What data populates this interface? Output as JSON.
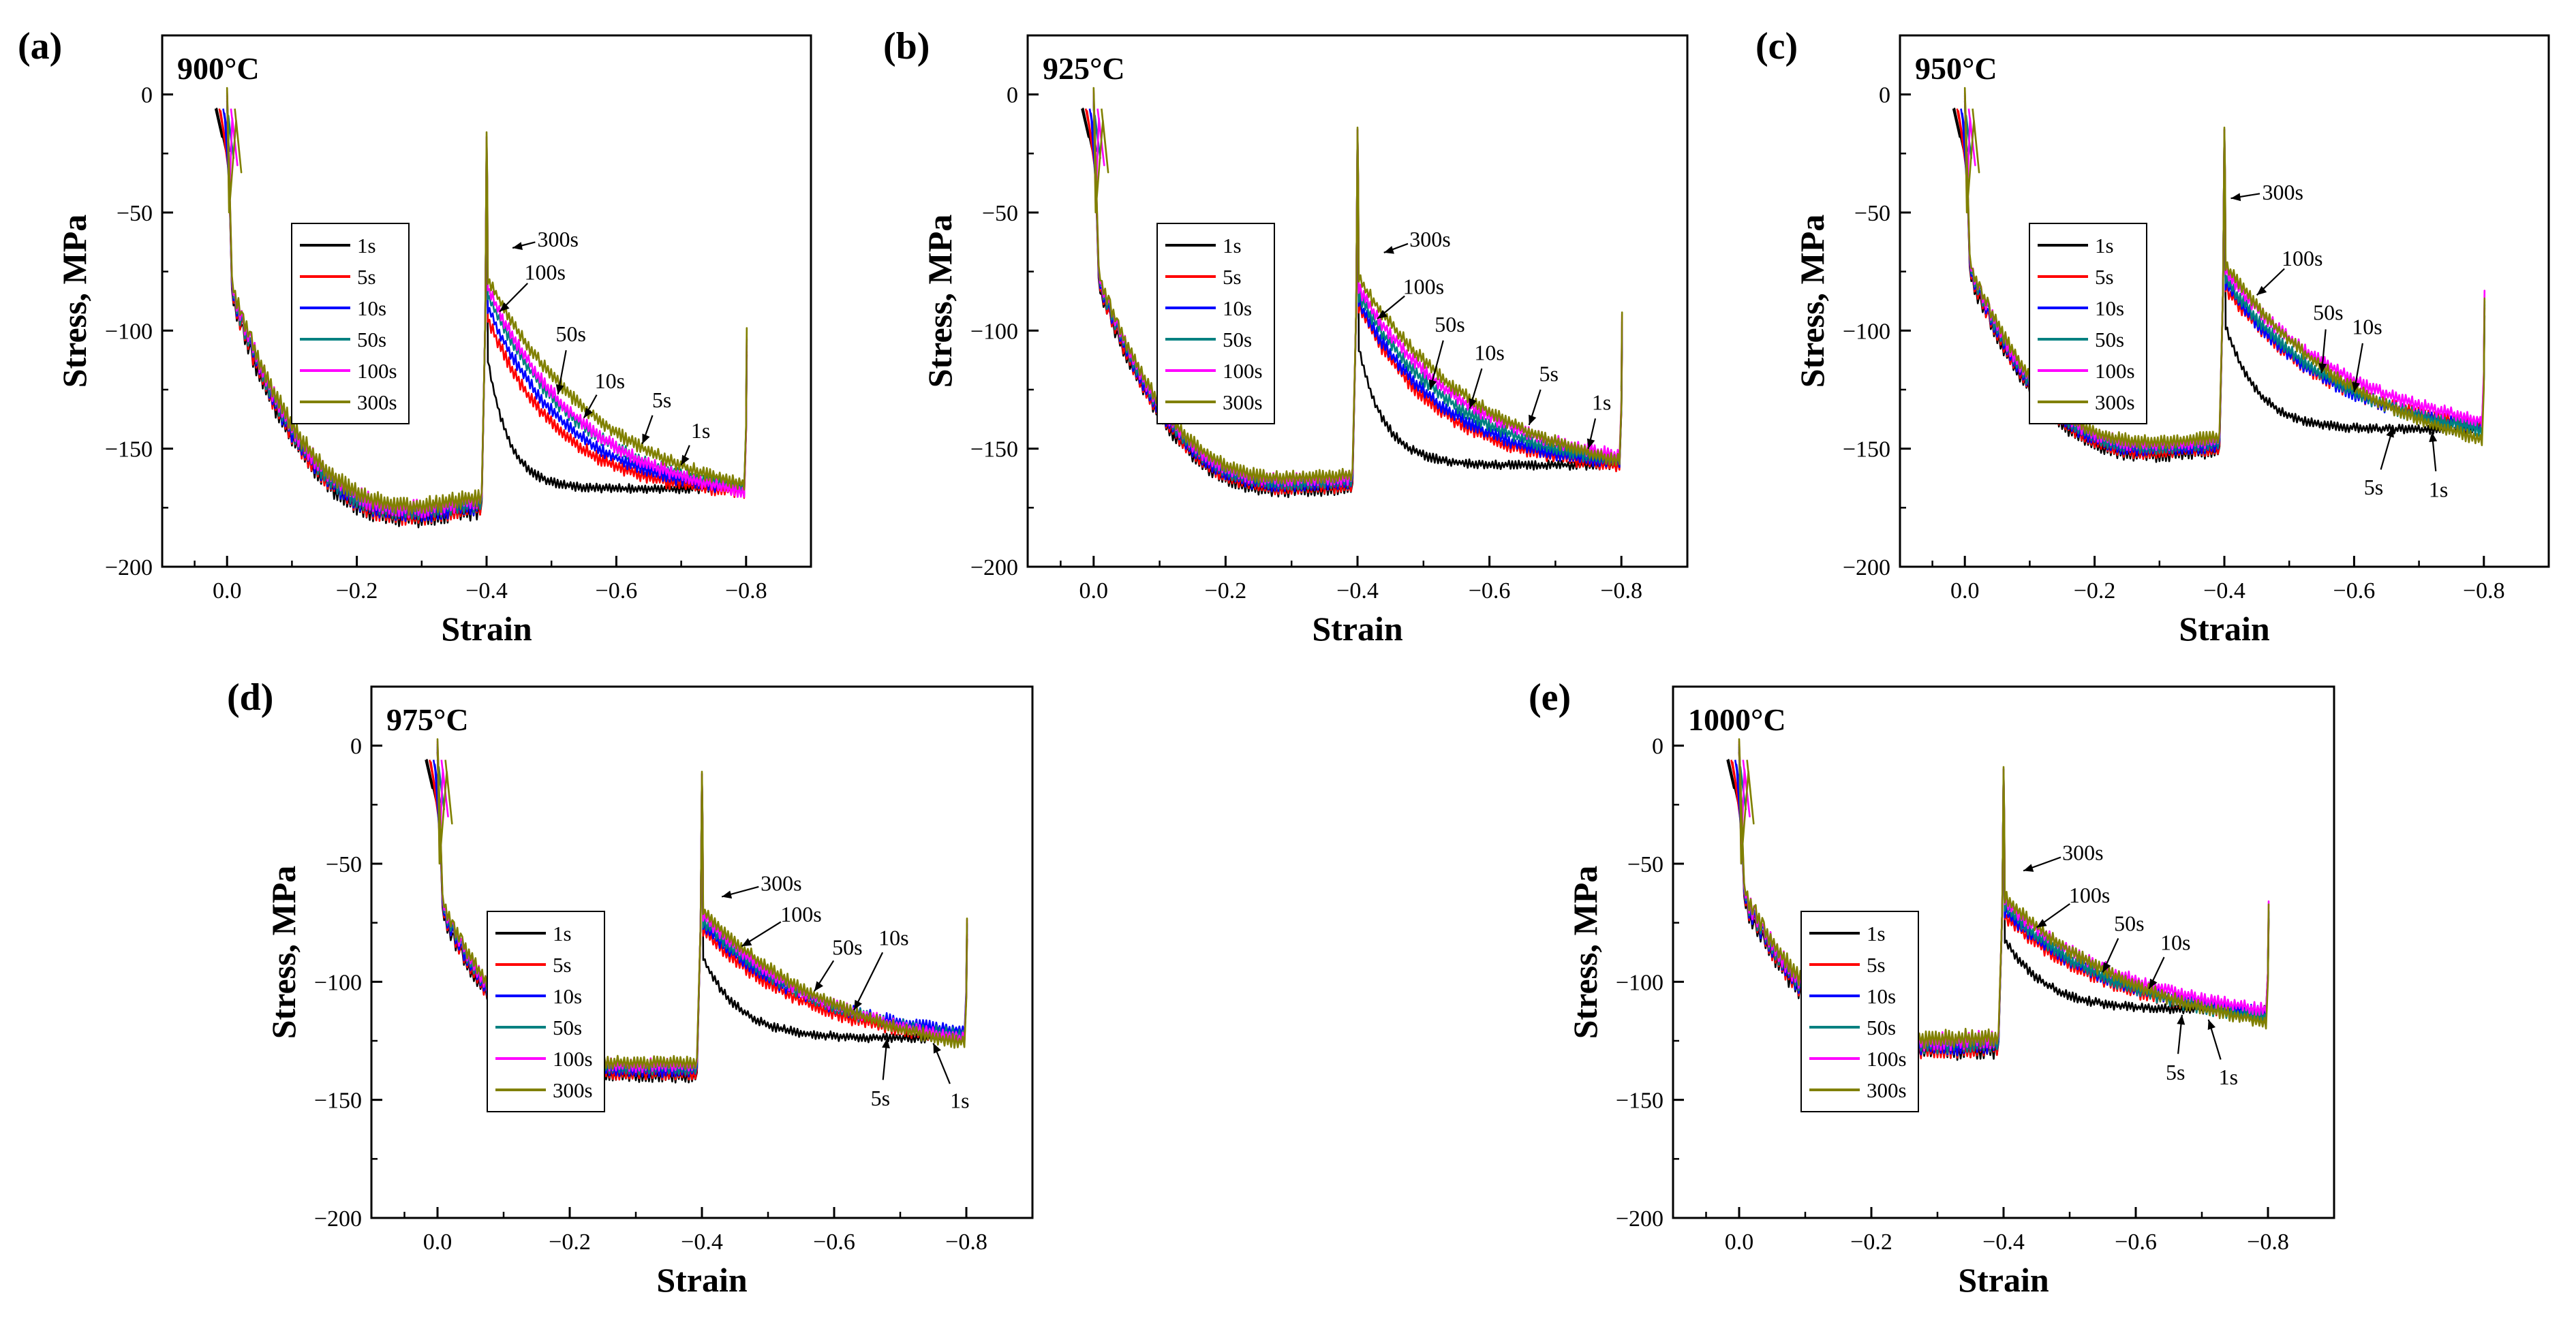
{
  "figure": {
    "xlabel": "Strain",
    "ylabel": "Stress, MPa"
  },
  "chart_data": [
    {
      "type": "line",
      "panel": "(a)",
      "temperature": "900°C",
      "xlim": [
        0.1,
        -0.9
      ],
      "ylim": [
        25,
        -200
      ],
      "xticks": [
        0,
        -0.2,
        -0.4,
        -0.6,
        -0.8
      ],
      "xtick_labels": [
        "0.0",
        "−0.2",
        "−0.4",
        "−0.6",
        "−0.8"
      ],
      "yticks": [
        0,
        -50,
        -100,
        -150,
        -200
      ],
      "ytick_labels": [
        "0",
        "−50",
        "−100",
        "−150",
        "−200"
      ],
      "legend": {
        "position": "center-left",
        "entries": [
          "1s",
          "5s",
          "10s",
          "50s",
          "100s",
          "300s"
        ]
      },
      "first_pass": {
        "yield_stress": -85,
        "peak_stress": -177,
        "end_stress": -173,
        "noise": 4
      },
      "series": [
        {
          "name": "1s",
          "color": "#000000",
          "unload_min": -20,
          "reload_start": -112,
          "end_stress": -167,
          "rate": 30,
          "noise": 2
        },
        {
          "name": "5s",
          "color": "#ff0000",
          "unload_min": -20,
          "reload_start": -95,
          "end_stress": -168,
          "rate": 9,
          "noise": 3
        },
        {
          "name": "10s",
          "color": "#0000ff",
          "unload_min": -20,
          "reload_start": -90,
          "end_stress": -167,
          "rate": 8,
          "noise": 3
        },
        {
          "name": "50s",
          "color": "#008080",
          "unload_min": -18,
          "reload_start": -85,
          "end_stress": -166,
          "rate": 7,
          "noise": 3
        },
        {
          "name": "100s",
          "color": "#ff00ff",
          "unload_min": -18,
          "reload_start": -82,
          "end_stress": -168,
          "rate": 6.5,
          "noise": 3
        },
        {
          "name": "300s",
          "color": "#808000",
          "unload_min": -16,
          "reload_start": -78,
          "end_stress": -165,
          "rate": 5.5,
          "noise": 3
        }
      ],
      "annotations": [
        {
          "text": "1s",
          "x": -0.73,
          "y": -142,
          "tip_x": -0.7,
          "tip_y": -157
        },
        {
          "text": "5s",
          "x": -0.67,
          "y": -129,
          "tip_x": -0.64,
          "tip_y": -148
        },
        {
          "text": "10s",
          "x": -0.59,
          "y": -121,
          "tip_x": -0.55,
          "tip_y": -137
        },
        {
          "text": "50s",
          "x": -0.53,
          "y": -101,
          "tip_x": -0.51,
          "tip_y": -127
        },
        {
          "text": "100s",
          "x": -0.49,
          "y": -75,
          "tip_x": -0.42,
          "tip_y": -92
        },
        {
          "text": "300s",
          "x": -0.51,
          "y": -61,
          "tip_x": -0.44,
          "tip_y": -65
        }
      ]
    },
    {
      "type": "line",
      "panel": "(b)",
      "temperature": "925°C",
      "xlim": [
        0.1,
        -0.9
      ],
      "ylim": [
        25,
        -200
      ],
      "xticks": [
        0,
        -0.2,
        -0.4,
        -0.6,
        -0.8
      ],
      "xtick_labels": [
        "0.0",
        "−0.2",
        "−0.4",
        "−0.6",
        "−0.8"
      ],
      "yticks": [
        0,
        -50,
        -100,
        -150,
        -200
      ],
      "ytick_labels": [
        "0",
        "−50",
        "−100",
        "−150",
        "−200"
      ],
      "legend": {
        "position": "center-left",
        "entries": [
          "1s",
          "5s",
          "10s",
          "50s",
          "100s",
          "300s"
        ]
      },
      "first_pass": {
        "yield_stress": -80,
        "peak_stress": -165,
        "end_stress": -164,
        "noise": 3
      },
      "series": [
        {
          "name": "1s",
          "color": "#000000",
          "unload_min": -15,
          "reload_start": -108,
          "end_stress": -157,
          "rate": 25,
          "noise": 2
        },
        {
          "name": "5s",
          "color": "#ff0000",
          "unload_min": -15,
          "reload_start": -90,
          "end_stress": -157,
          "rate": 8,
          "noise": 3
        },
        {
          "name": "10s",
          "color": "#0000ff",
          "unload_min": -15,
          "reload_start": -88,
          "end_stress": -156,
          "rate": 7.5,
          "noise": 3
        },
        {
          "name": "50s",
          "color": "#008080",
          "unload_min": -15,
          "reload_start": -85,
          "end_stress": -155,
          "rate": 6.5,
          "noise": 3
        },
        {
          "name": "100s",
          "color": "#ff00ff",
          "unload_min": -15,
          "reload_start": -82,
          "end_stress": -153,
          "rate": 6,
          "noise": 3
        },
        {
          "name": "300s",
          "color": "#808000",
          "unload_min": -14,
          "reload_start": -78,
          "end_stress": -155,
          "rate": 5,
          "noise": 3
        }
      ],
      "annotations": [
        {
          "text": "1s",
          "x": -0.77,
          "y": -130,
          "tip_x": -0.75,
          "tip_y": -150
        },
        {
          "text": "5s",
          "x": -0.69,
          "y": -118,
          "tip_x": -0.66,
          "tip_y": -140
        },
        {
          "text": "10s",
          "x": -0.6,
          "y": -109,
          "tip_x": -0.57,
          "tip_y": -133
        },
        {
          "text": "50s",
          "x": -0.54,
          "y": -97,
          "tip_x": -0.51,
          "tip_y": -125
        },
        {
          "text": "100s",
          "x": -0.5,
          "y": -81,
          "tip_x": -0.43,
          "tip_y": -95
        },
        {
          "text": "300s",
          "x": -0.51,
          "y": -61,
          "tip_x": -0.44,
          "tip_y": -67
        }
      ]
    },
    {
      "type": "line",
      "panel": "(c)",
      "temperature": "950°C",
      "xlim": [
        0.1,
        -0.9
      ],
      "ylim": [
        25,
        -200
      ],
      "xticks": [
        0,
        -0.2,
        -0.4,
        -0.6,
        -0.8
      ],
      "xtick_labels": [
        "0.0",
        "−0.2",
        "−0.4",
        "−0.6",
        "−0.8"
      ],
      "yticks": [
        0,
        -50,
        -100,
        -150,
        -200
      ],
      "ytick_labels": [
        "0",
        "−50",
        "−100",
        "−150",
        "−200"
      ],
      "legend": {
        "position": "center-left",
        "entries": [
          "1s",
          "5s",
          "10s",
          "50s",
          "100s",
          "300s"
        ]
      },
      "first_pass": {
        "yield_stress": -75,
        "peak_stress": -150,
        "end_stress": -148,
        "noise": 3
      },
      "series": [
        {
          "name": "1s",
          "color": "#000000",
          "unload_min": -15,
          "reload_start": -98,
          "end_stress": -142,
          "rate": 20,
          "noise": 2
        },
        {
          "name": "5s",
          "color": "#ff0000",
          "unload_min": -15,
          "reload_start": -82,
          "end_stress": -140,
          "rate": 6,
          "noise": 3
        },
        {
          "name": "10s",
          "color": "#0000ff",
          "unload_min": -15,
          "reload_start": -80,
          "end_stress": -141,
          "rate": 6,
          "noise": 3
        },
        {
          "name": "50s",
          "color": "#008080",
          "unload_min": -15,
          "reload_start": -78,
          "end_stress": -142,
          "rate": 5.5,
          "noise": 3
        },
        {
          "name": "100s",
          "color": "#ff00ff",
          "unload_min": -15,
          "reload_start": -75,
          "end_stress": -138,
          "rate": 5,
          "noise": 3
        },
        {
          "name": "300s",
          "color": "#808000",
          "unload_min": -14,
          "reload_start": -72,
          "end_stress": -146,
          "rate": 4.5,
          "noise": 3
        }
      ],
      "annotations": [
        {
          "text": "1s",
          "x": -0.73,
          "y": -167,
          "tip_x": -0.72,
          "tip_y": -143
        },
        {
          "text": "5s",
          "x": -0.63,
          "y": -166,
          "tip_x": -0.66,
          "tip_y": -141
        },
        {
          "text": "10s",
          "x": -0.62,
          "y": -98,
          "tip_x": -0.6,
          "tip_y": -126
        },
        {
          "text": "50s",
          "x": -0.56,
          "y": -92,
          "tip_x": -0.55,
          "tip_y": -118
        },
        {
          "text": "100s",
          "x": -0.52,
          "y": -69,
          "tip_x": -0.45,
          "tip_y": -85
        },
        {
          "text": "300s",
          "x": -0.49,
          "y": -41,
          "tip_x": -0.41,
          "tip_y": -44
        }
      ]
    },
    {
      "type": "line",
      "panel": "(d)",
      "temperature": "975°C",
      "xlim": [
        0.1,
        -0.9
      ],
      "ylim": [
        25,
        -200
      ],
      "xticks": [
        0,
        -0.2,
        -0.4,
        -0.6,
        -0.8
      ],
      "xtick_labels": [
        "0.0",
        "−0.2",
        "−0.4",
        "−0.6",
        "−0.8"
      ],
      "yticks": [
        0,
        -50,
        -100,
        -150,
        -200
      ],
      "ytick_labels": [
        "0",
        "−50",
        "−100",
        "−150",
        "−200"
      ],
      "legend": {
        "position": "center-left",
        "entries": [
          "1s",
          "5s",
          "10s",
          "50s",
          "100s",
          "300s"
        ]
      },
      "first_pass": {
        "yield_stress": -70,
        "peak_stress": -137,
        "end_stress": -137,
        "noise": 3
      },
      "series": [
        {
          "name": "1s",
          "color": "#000000",
          "unload_min": -12,
          "reload_start": -90,
          "end_stress": -124,
          "rate": 18,
          "noise": 2
        },
        {
          "name": "5s",
          "color": "#ff0000",
          "unload_min": -12,
          "reload_start": -78,
          "end_stress": -124,
          "rate": 6,
          "noise": 3
        },
        {
          "name": "10s",
          "color": "#0000ff",
          "unload_min": -12,
          "reload_start": -76,
          "end_stress": -121,
          "rate": 6,
          "noise": 3
        },
        {
          "name": "50s",
          "color": "#008080",
          "unload_min": -12,
          "reload_start": -74,
          "end_stress": -123,
          "rate": 5.5,
          "noise": 3
        },
        {
          "name": "100s",
          "color": "#ff00ff",
          "unload_min": -12,
          "reload_start": -72,
          "end_stress": -124,
          "rate": 5,
          "noise": 3
        },
        {
          "name": "300s",
          "color": "#808000",
          "unload_min": -11,
          "reload_start": -70,
          "end_stress": -126,
          "rate": 4.5,
          "noise": 3
        }
      ],
      "annotations": [
        {
          "text": "1s",
          "x": -0.79,
          "y": -150,
          "tip_x": -0.75,
          "tip_y": -126
        },
        {
          "text": "5s",
          "x": -0.67,
          "y": -149,
          "tip_x": -0.68,
          "tip_y": -124
        },
        {
          "text": "10s",
          "x": -0.69,
          "y": -81,
          "tip_x": -0.63,
          "tip_y": -112
        },
        {
          "text": "50s",
          "x": -0.62,
          "y": -85,
          "tip_x": -0.57,
          "tip_y": -104
        },
        {
          "text": "100s",
          "x": -0.55,
          "y": -71,
          "tip_x": -0.46,
          "tip_y": -85
        },
        {
          "text": "300s",
          "x": -0.52,
          "y": -58,
          "tip_x": -0.43,
          "tip_y": -64
        }
      ]
    },
    {
      "type": "line",
      "panel": "(e)",
      "temperature": "1000°C",
      "xlim": [
        0.1,
        -0.9
      ],
      "ylim": [
        25,
        -200
      ],
      "xticks": [
        0,
        -0.2,
        -0.4,
        -0.6,
        -0.8
      ],
      "xtick_labels": [
        "0.0",
        "−0.2",
        "−0.4",
        "−0.6",
        "−0.8"
      ],
      "yticks": [
        0,
        -50,
        -100,
        -150,
        -200
      ],
      "ytick_labels": [
        "0",
        "−50",
        "−100",
        "−150",
        "−200"
      ],
      "legend": {
        "position": "center-left",
        "entries": [
          "1s",
          "5s",
          "10s",
          "50s",
          "100s",
          "300s"
        ]
      },
      "first_pass": {
        "yield_stress": -65,
        "peak_stress": -127,
        "end_stress": -126,
        "noise": 4
      },
      "series": [
        {
          "name": "1s",
          "color": "#000000",
          "unload_min": -10,
          "reload_start": -82,
          "end_stress": -112,
          "rate": 16,
          "noise": 2
        },
        {
          "name": "5s",
          "color": "#ff0000",
          "unload_min": -10,
          "reload_start": -72,
          "end_stress": -114,
          "rate": 6,
          "noise": 3
        },
        {
          "name": "10s",
          "color": "#0000ff",
          "unload_min": -10,
          "reload_start": -70,
          "end_stress": -113,
          "rate": 6,
          "noise": 3
        },
        {
          "name": "50s",
          "color": "#008080",
          "unload_min": -10,
          "reload_start": -68,
          "end_stress": -115,
          "rate": 5.5,
          "noise": 3
        },
        {
          "name": "100s",
          "color": "#ff00ff",
          "unload_min": -10,
          "reload_start": -66,
          "end_stress": -112,
          "rate": 5,
          "noise": 3
        },
        {
          "name": "300s",
          "color": "#808000",
          "unload_min": -9,
          "reload_start": -64,
          "end_stress": -117,
          "rate": 4.5,
          "noise": 3
        }
      ],
      "annotations": [
        {
          "text": "1s",
          "x": -0.74,
          "y": -140,
          "tip_x": -0.71,
          "tip_y": -116
        },
        {
          "text": "5s",
          "x": -0.66,
          "y": -138,
          "tip_x": -0.67,
          "tip_y": -114
        },
        {
          "text": "10s",
          "x": -0.66,
          "y": -83,
          "tip_x": -0.62,
          "tip_y": -103
        },
        {
          "text": "50s",
          "x": -0.59,
          "y": -75,
          "tip_x": -0.55,
          "tip_y": -96
        },
        {
          "text": "100s",
          "x": -0.53,
          "y": -63,
          "tip_x": -0.45,
          "tip_y": -77
        },
        {
          "text": "300s",
          "x": -0.52,
          "y": -45,
          "tip_x": -0.43,
          "tip_y": -53
        }
      ]
    }
  ]
}
